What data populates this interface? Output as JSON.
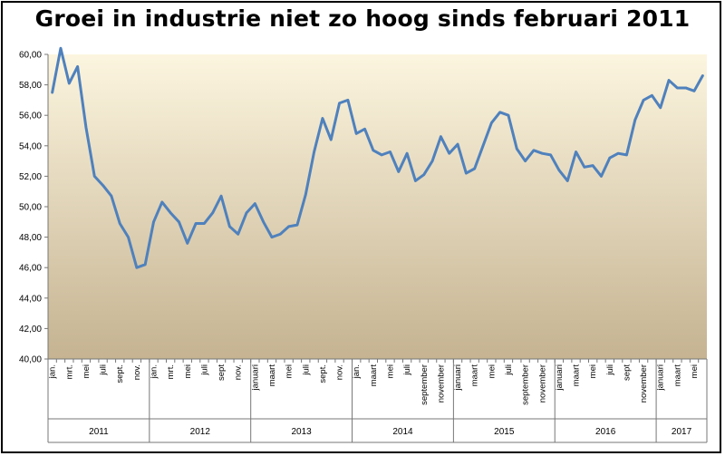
{
  "chart_data": {
    "type": "line",
    "title": "Groei in industrie niet zo hoog sinds februari 2011",
    "xlabel": "",
    "ylabel": "",
    "ylim": [
      40,
      60
    ],
    "yticks": [
      "40,00",
      "42,00",
      "44,00",
      "46,00",
      "48,00",
      "50,00",
      "52,00",
      "54,00",
      "56,00",
      "58,00",
      "60,00"
    ],
    "grid": false,
    "legend": "none",
    "x": [
      "jan.",
      "",
      "mrt.",
      "",
      "mei",
      "",
      "juli",
      "",
      "sept.",
      "",
      "nov.",
      "",
      "jan.",
      "",
      "mrt.",
      "",
      "mei",
      "",
      "juli",
      "",
      "sept",
      "",
      "nov.",
      "",
      "januari",
      "",
      "maart",
      "",
      "mei",
      "",
      "juli",
      "",
      "sept.",
      "",
      "nov.",
      "",
      "jan.",
      "",
      "maart",
      "",
      "mei",
      "",
      "juli",
      "",
      "september",
      "",
      "november",
      "",
      "januari",
      "",
      "maart",
      "",
      "mei",
      "",
      "juli",
      "",
      "september",
      "",
      "november",
      "",
      "januari",
      "",
      "maart",
      "",
      "mei",
      "",
      "juli",
      "",
      "sept",
      "",
      "november",
      "",
      "januari",
      "",
      "maart",
      "",
      "mei",
      ""
    ],
    "years": [
      {
        "label": "2011",
        "months": 12
      },
      {
        "label": "2012",
        "months": 12
      },
      {
        "label": "2013",
        "months": 12
      },
      {
        "label": "2014",
        "months": 12
      },
      {
        "label": "2015",
        "months": 12
      },
      {
        "label": "2016",
        "months": 12
      },
      {
        "label": "2017",
        "months": 6
      }
    ],
    "series": [
      {
        "values": [
          57.5,
          60.4,
          58.1,
          59.2,
          55.2,
          52.0,
          51.4,
          50.7,
          48.9,
          48.0,
          46.0,
          46.2,
          49.0,
          50.3,
          49.6,
          49.0,
          47.6,
          48.9,
          48.9,
          49.6,
          50.7,
          48.7,
          48.2,
          49.6,
          50.2,
          49.0,
          48.0,
          48.2,
          48.7,
          48.8,
          50.8,
          53.6,
          55.8,
          54.4,
          56.8,
          57.0,
          54.8,
          55.1,
          53.7,
          53.4,
          53.6,
          52.3,
          53.5,
          51.7,
          52.1,
          53.0,
          54.6,
          53.5,
          54.1,
          52.2,
          52.5,
          54.0,
          55.5,
          56.2,
          56.0,
          53.8,
          53.0,
          53.7,
          53.5,
          53.4,
          52.4,
          51.7,
          53.6,
          52.6,
          52.7,
          52.0,
          53.2,
          53.5,
          53.4,
          55.7,
          57.0,
          57.3,
          56.5,
          58.3,
          57.8,
          57.8,
          57.6,
          58.6
        ]
      }
    ],
    "colors": {
      "line": "#4f81bd",
      "plot_top": "#fcf5df",
      "plot_bottom": "#c5b391",
      "outer": "#ffffff"
    }
  }
}
